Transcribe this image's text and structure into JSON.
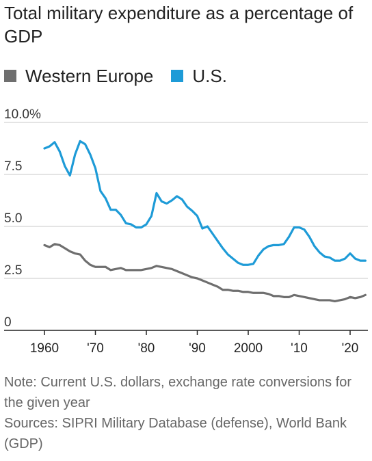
{
  "chart_data": {
    "type": "line",
    "title": "Total military expenditure as a percentage of GDP",
    "ylim": [
      0,
      10
    ],
    "xlim": [
      1957,
      2023
    ],
    "y_ticks": [
      0,
      2.5,
      5,
      7.5,
      10
    ],
    "y_tick_labels": [
      "0",
      "2.5",
      "5.0",
      "7.5",
      "10.0%"
    ],
    "x_ticks": [
      1960,
      1970,
      1980,
      1990,
      2000,
      2010,
      2020
    ],
    "x_tick_labels": [
      "1960",
      "'70",
      "'80",
      "'90",
      "2000",
      "'10",
      "'20"
    ],
    "grid": "horizontal",
    "legend_position": "top-left",
    "x": [
      1960,
      1961,
      1962,
      1963,
      1964,
      1965,
      1966,
      1967,
      1968,
      1969,
      1970,
      1971,
      1972,
      1973,
      1974,
      1975,
      1976,
      1977,
      1978,
      1979,
      1980,
      1981,
      1982,
      1983,
      1984,
      1985,
      1986,
      1987,
      1988,
      1989,
      1990,
      1991,
      1992,
      1993,
      1994,
      1995,
      1996,
      1997,
      1998,
      1999,
      2000,
      2001,
      2002,
      2003,
      2004,
      2005,
      2006,
      2007,
      2008,
      2009,
      2010,
      2011,
      2012,
      2013,
      2014,
      2015,
      2016,
      2017,
      2018,
      2019,
      2020,
      2021,
      2022,
      2023
    ],
    "series": [
      {
        "name": "Western Europe",
        "color": "#6f6f6f",
        "values": [
          4.1,
          4.0,
          4.15,
          4.1,
          3.95,
          3.8,
          3.7,
          3.65,
          3.35,
          3.15,
          3.05,
          3.05,
          3.05,
          2.9,
          2.95,
          3.0,
          2.9,
          2.9,
          2.9,
          2.9,
          2.95,
          3.0,
          3.1,
          3.05,
          3.0,
          2.95,
          2.85,
          2.75,
          2.65,
          2.55,
          2.5,
          2.4,
          2.3,
          2.2,
          2.1,
          1.95,
          1.95,
          1.9,
          1.9,
          1.85,
          1.85,
          1.8,
          1.8,
          1.8,
          1.75,
          1.65,
          1.65,
          1.6,
          1.6,
          1.7,
          1.65,
          1.6,
          1.55,
          1.5,
          1.45,
          1.45,
          1.45,
          1.4,
          1.45,
          1.5,
          1.6,
          1.55,
          1.6,
          1.7
        ]
      },
      {
        "name": "U.S.",
        "color": "#1e9bd7",
        "values": [
          8.75,
          8.85,
          9.05,
          8.6,
          7.9,
          7.45,
          8.45,
          9.1,
          8.95,
          8.45,
          7.8,
          6.7,
          6.35,
          5.8,
          5.8,
          5.55,
          5.15,
          5.1,
          4.95,
          4.95,
          5.1,
          5.5,
          6.6,
          6.2,
          6.1,
          6.25,
          6.45,
          6.3,
          5.95,
          5.75,
          5.5,
          4.9,
          5.0,
          4.65,
          4.3,
          3.95,
          3.65,
          3.45,
          3.25,
          3.15,
          3.15,
          3.2,
          3.6,
          3.9,
          4.05,
          4.1,
          4.1,
          4.15,
          4.5,
          4.95,
          4.95,
          4.85,
          4.5,
          4.05,
          3.75,
          3.55,
          3.5,
          3.35,
          3.35,
          3.45,
          3.7,
          3.45,
          3.35,
          3.35
        ]
      }
    ]
  },
  "note": "Note: Current U.S. dollars, exchange rate conversions for the given year",
  "sources": "Sources: SIPRI Military Database (defense), World Bank (GDP)"
}
